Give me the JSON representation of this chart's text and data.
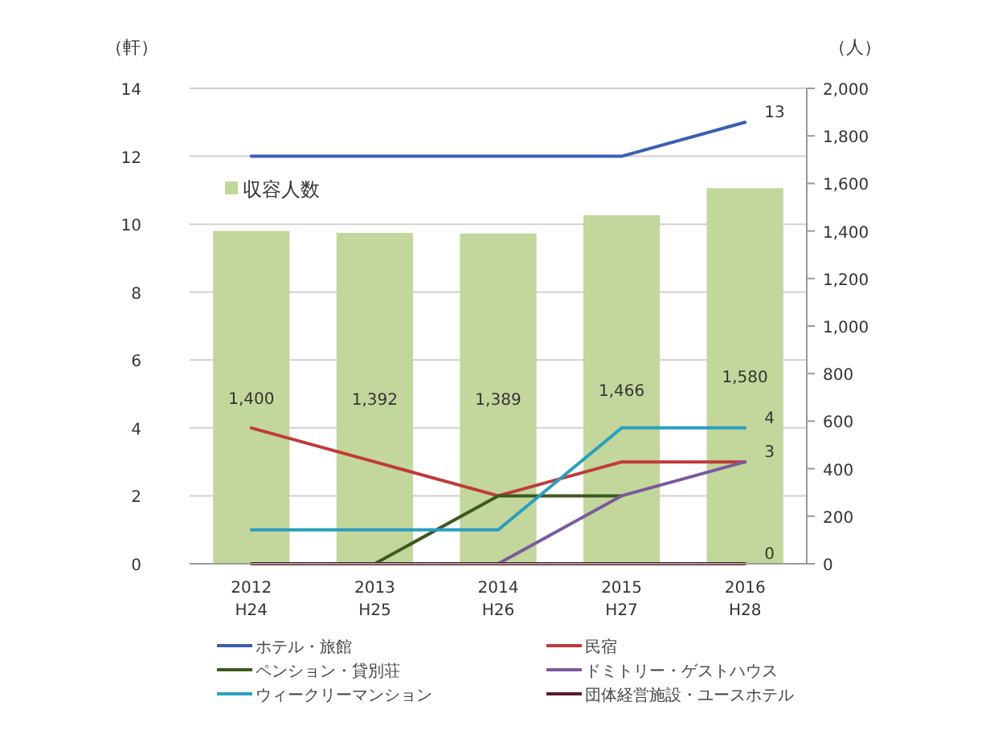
{
  "chart_data": {
    "type": "line",
    "categories": [
      "2012\nH24",
      "2013\nH25",
      "2014\nH26",
      "2015\nH27",
      "2016\nH28"
    ],
    "ylabel": "（軒）",
    "y2label": "（人）",
    "ylim": [
      0,
      14
    ],
    "yticks": [
      0,
      2,
      4,
      6,
      8,
      10,
      12,
      14
    ],
    "y2lim": [
      0,
      2000
    ],
    "y2ticks": [
      0,
      {
        "value": 200,
        "label": "200"
      },
      {
        "value": 400,
        "label": "400"
      },
      {
        "value": 600,
        "label": "600"
      },
      {
        "value": 800,
        "label": "800"
      },
      {
        "value": 1000,
        "label": "1,000"
      },
      {
        "value": 1200,
        "label": "1,200"
      },
      {
        "value": 1400,
        "label": "1,400"
      },
      {
        "value": 1600,
        "label": "1,600"
      },
      {
        "value": 1800,
        "label": "1,800"
      },
      {
        "value": 2000,
        "label": "2,000"
      }
    ],
    "grid": "y",
    "legend": "bottom",
    "series": [
      {
        "name": "収容人数",
        "type": "bar",
        "axis": "y2",
        "color": "#c3d69b",
        "values": [
          1400,
          1392,
          1389,
          1466,
          1580
        ],
        "value_labels": [
          "1,400",
          "1,392",
          "1,389",
          "1,466",
          "1,580"
        ]
      },
      {
        "name": "ホテル・旅館",
        "color": "#3a5fb0",
        "values": [
          12,
          12,
          12,
          12,
          13
        ],
        "value_labels": [
          null,
          null,
          null,
          null,
          "13"
        ]
      },
      {
        "name": "民宿",
        "color": "#c0393b",
        "values": [
          4,
          3,
          2,
          3,
          3
        ],
        "value_labels": [
          null,
          null,
          null,
          null,
          "3"
        ]
      },
      {
        "name": "ペンション・貸別荘",
        "color": "#3d5a1e",
        "values": [
          null,
          0,
          2,
          2,
          null
        ]
      },
      {
        "name": "ドミトリー・ゲストハウス",
        "color": "#7a5a9e",
        "values": [
          null,
          null,
          0,
          2,
          3
        ]
      },
      {
        "name": "ウィークリーマンション",
        "color": "#2a9fc0",
        "values": [
          1,
          1,
          1,
          4,
          4
        ],
        "value_labels": [
          null,
          null,
          null,
          null,
          "4"
        ]
      },
      {
        "name": "団体経営施設・ユースホテル",
        "color": "#5a1a2a",
        "values": [
          0,
          0,
          0,
          0,
          0
        ],
        "value_labels": [
          null,
          null,
          null,
          null,
          "0"
        ]
      }
    ]
  }
}
